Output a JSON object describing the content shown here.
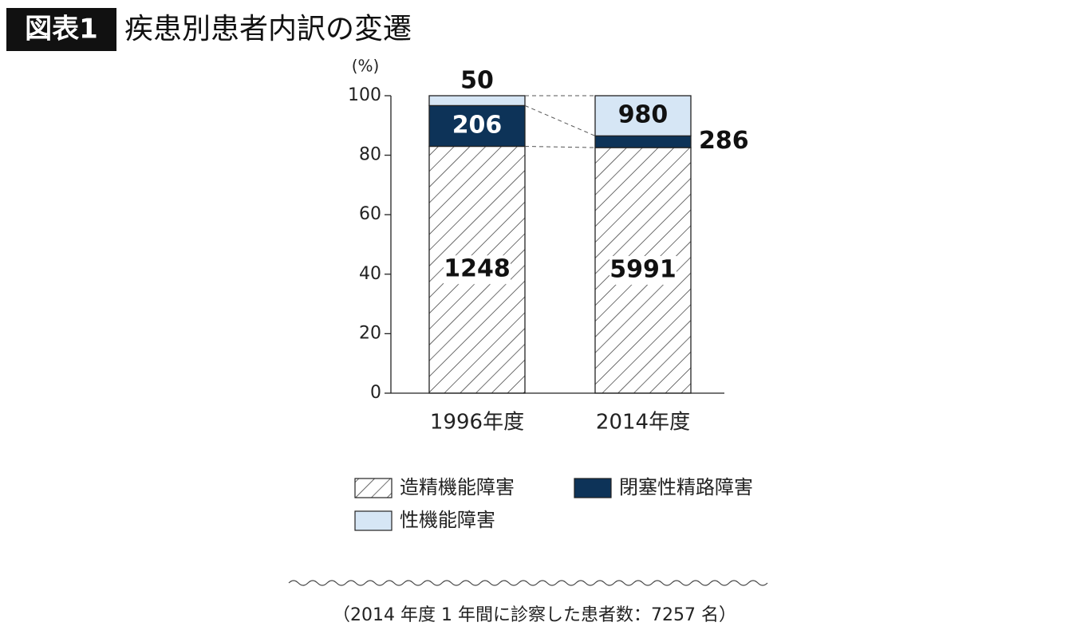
{
  "chart_data": {
    "type": "bar",
    "stack": "percent",
    "label": "図表1",
    "title": "疾患別患者内訳の変遷",
    "y_label": "(%)",
    "categories": [
      "1996年度",
      "2014年度"
    ],
    "series": [
      {
        "name": "造精機能障害",
        "color": "#ffffff",
        "hatch": true,
        "values": [
          1248,
          5991
        ]
      },
      {
        "name": "閉塞性精路障害",
        "color": "#0d3358",
        "values": [
          206,
          286
        ]
      },
      {
        "name": "性機能障害",
        "color": "#d6e6f5",
        "values": [
          50,
          980
        ]
      }
    ],
    "ylim": [
      0,
      100
    ],
    "yticks": [
      0,
      20,
      40,
      60,
      80,
      100
    ],
    "note": "（2014 年度 1 年間に診察した患者数：7257 名）"
  }
}
